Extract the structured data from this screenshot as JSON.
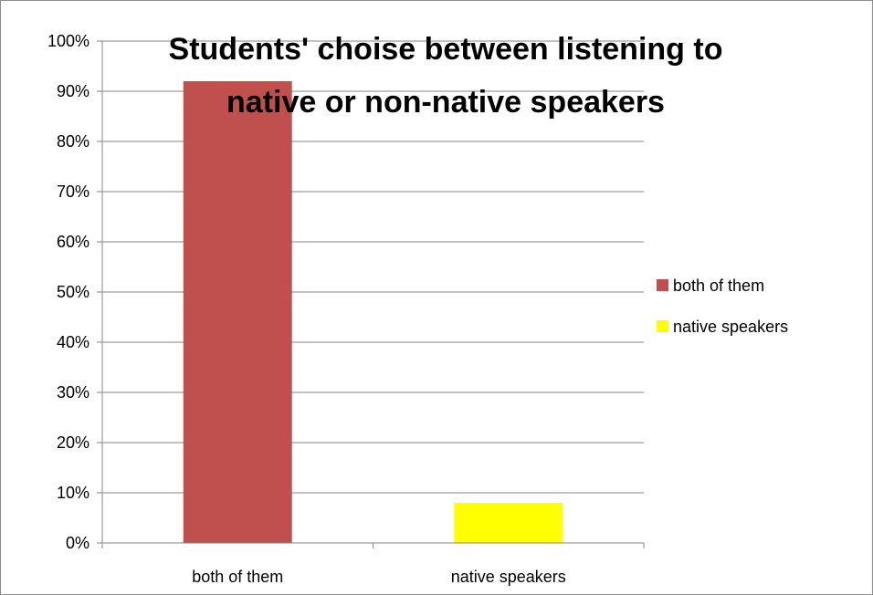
{
  "chart_data": {
    "type": "bar",
    "title": "Students' choise between listening to native or non-native speakers",
    "title_lines": [
      "Students' choise between listening to",
      "native or non-native speakers"
    ],
    "categories": [
      "both of them",
      "native speakers"
    ],
    "values": [
      92,
      8
    ],
    "colors": [
      "#c0504d",
      "#ffff00"
    ],
    "ylim": [
      0,
      100
    ],
    "yticks": [
      0,
      10,
      20,
      30,
      40,
      50,
      60,
      70,
      80,
      90,
      100
    ],
    "ytick_labels": [
      "0%",
      "10%",
      "20%",
      "30%",
      "40%",
      "50%",
      "60%",
      "70%",
      "80%",
      "90%",
      "100%"
    ],
    "grid": true,
    "legend": {
      "position": "right",
      "entries": [
        {
          "label": "both of them",
          "color": "#c0504d"
        },
        {
          "label": "native speakers",
          "color": "#ffff00"
        }
      ]
    }
  }
}
